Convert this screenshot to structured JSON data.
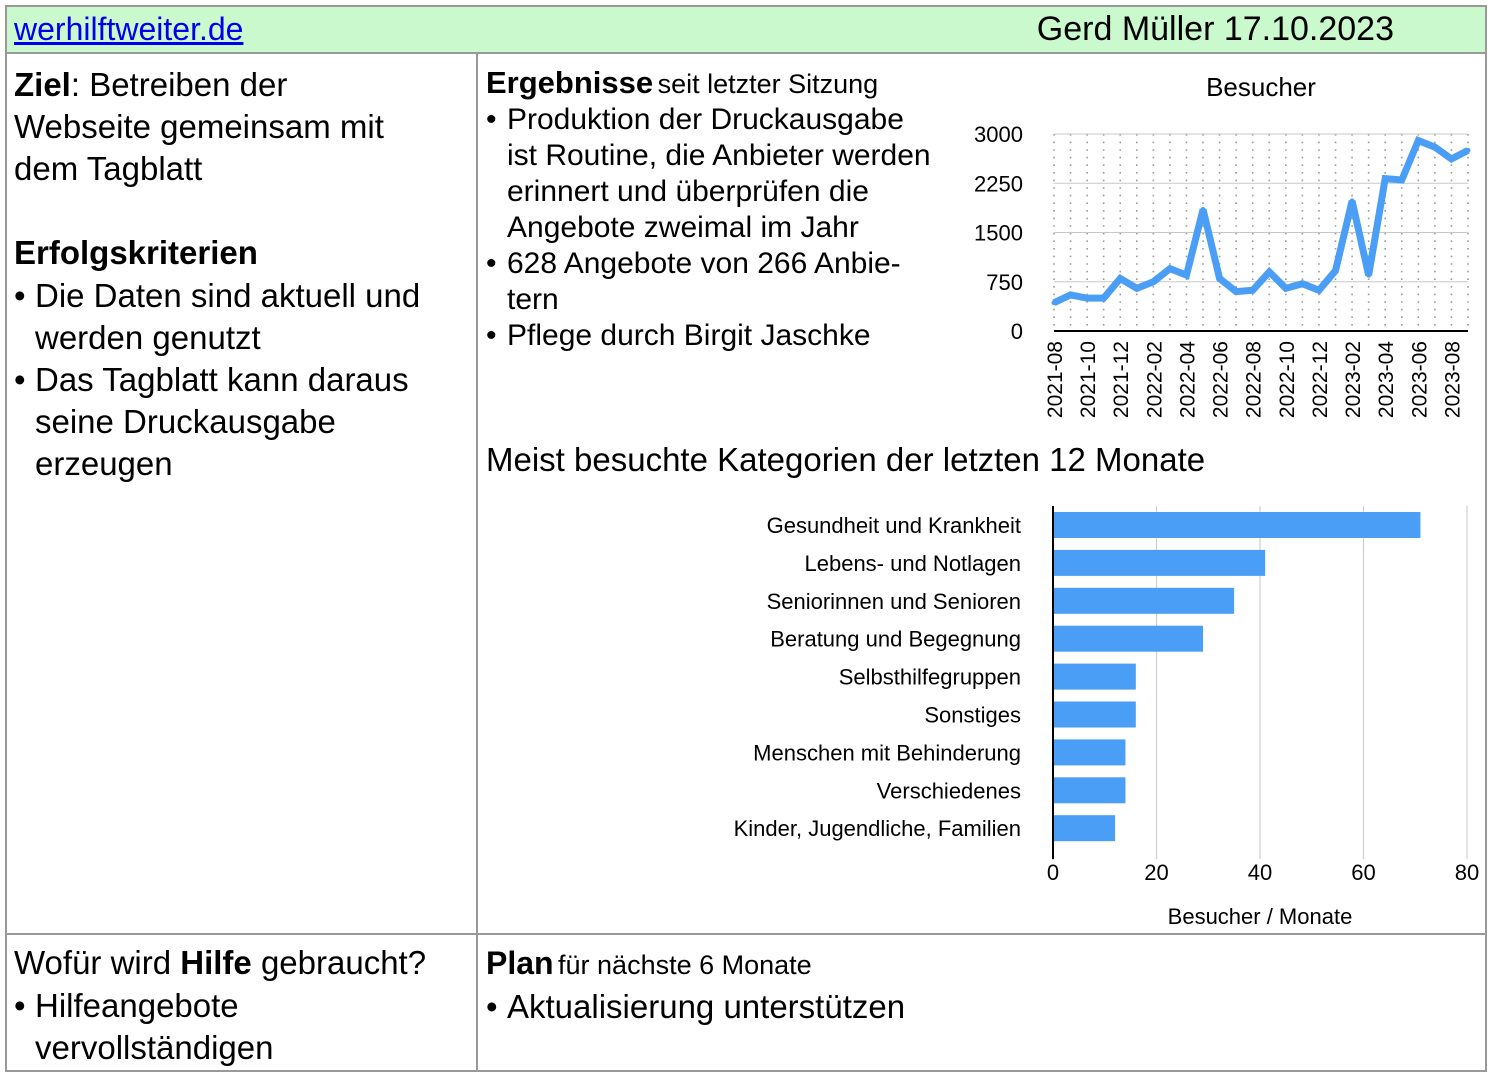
{
  "header": {
    "link": "werhilftweiter.de",
    "author_date": "Gerd Müller 17.10.2023"
  },
  "goal": {
    "label": "Ziel",
    "text_lines": [
      ": Betreiben der",
      "Webseite gemeinsam mit",
      "dem Tagblatt"
    ]
  },
  "criteria": {
    "title": "Erfolgskriterien",
    "items": [
      [
        "Die Daten sind aktuell und",
        "werden genutzt"
      ],
      [
        "Das Tagblatt kann daraus",
        "seine Druckausgabe",
        "erzeugen"
      ]
    ]
  },
  "results": {
    "title": "Ergebnisse",
    "subtitle": "seit letzter Sitzung",
    "items": [
      [
        "Produktion der Druckausgabe",
        "ist Routine, die Anbieter werden",
        "erinnert und überprüfen die",
        "Angebote zweimal im Jahr"
      ],
      [
        "628 Angebote von 266 Anbie-",
        "tern"
      ],
      [
        "Pflege durch Birgit Jaschke"
      ]
    ]
  },
  "help": {
    "title_pre": "Wofür wird ",
    "title_bold": "Hilfe",
    "title_post": " gebraucht?",
    "items": [
      [
        "Hilfeangebote",
        "vervollständigen"
      ]
    ]
  },
  "plan": {
    "title": "Plan",
    "subtitle": "für nächste 6 Monate",
    "items": [
      [
        "Aktualisierung unterstützen"
      ]
    ]
  },
  "colors": {
    "accent": "#4a9ef5",
    "header_bg": "#c9f9cc",
    "link": "#0000ee"
  },
  "chart_data": [
    {
      "type": "line",
      "title": "Besucher",
      "x": [
        "2021-08",
        "2021-09",
        "2021-10",
        "2021-11",
        "2021-12",
        "2022-01",
        "2022-02",
        "2022-03",
        "2022-04",
        "2022-05",
        "2022-06",
        "2022-07",
        "2022-08",
        "2022-09",
        "2022-10",
        "2022-11",
        "2022-12",
        "2023-01",
        "2023-02",
        "2023-03",
        "2023-04",
        "2023-05",
        "2023-06",
        "2023-07",
        "2023-08",
        "2023-09"
      ],
      "x_tick_labels": [
        "2021-08",
        "2021-10",
        "2021-12",
        "2022-02",
        "2022-04",
        "2022-06",
        "2022-08",
        "2022-10",
        "2022-12",
        "2023-02",
        "2023-04",
        "2023-06",
        "2023-08"
      ],
      "series": [
        {
          "values": [
            430,
            550,
            500,
            500,
            800,
            650,
            750,
            950,
            850,
            1850,
            800,
            600,
            620,
            900,
            650,
            720,
            620,
            920,
            1980,
            850,
            2320,
            2300,
            2900,
            2800,
            2620,
            2750
          ]
        }
      ],
      "ylim": [
        0,
        3000
      ],
      "y_ticks": [
        0,
        750,
        1500,
        2250,
        3000
      ],
      "grid": true
    },
    {
      "type": "bar",
      "orientation": "horizontal",
      "title": "Meist besuchte Kategorien der letzten 12 Monate",
      "xlabel": "Besucher / Monate",
      "categories": [
        "Gesundheit und Krankheit",
        "Lebens- und Notlagen",
        "Seniorinnen und Senioren",
        "Beratung und Begegnung",
        "Selbsthilfegruppen",
        "Sonstiges",
        "Menschen mit Behinderung",
        "Verschiedenes",
        "Kinder, Jugendliche, Familien"
      ],
      "values": [
        71,
        41,
        35,
        29,
        16,
        16,
        14,
        14,
        12
      ],
      "xlim": [
        0,
        80
      ],
      "x_ticks": [
        0,
        20,
        40,
        60,
        80
      ],
      "grid": true
    }
  ]
}
